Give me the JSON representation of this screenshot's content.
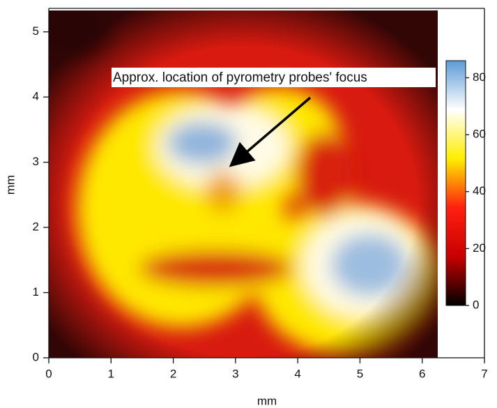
{
  "chart_data": {
    "type": "heatmap",
    "xlabel": "mm",
    "ylabel": "mm",
    "xlim": [
      0,
      7
    ],
    "xticks": [
      0,
      1,
      2,
      3,
      4,
      5,
      6,
      7
    ],
    "ylim": [
      0,
      5.36
    ],
    "yticks": [
      0,
      1,
      2,
      3,
      4,
      5
    ],
    "colormap": [
      "#000000",
      "#c80000",
      "#ff2010",
      "#ffee00",
      "#ffffff",
      "#5b9bd5"
    ],
    "colorbar": {
      "lim": [
        0,
        86
      ],
      "ticks": [
        0,
        20,
        40,
        60,
        80
      ]
    },
    "annotation": "Approx. location of pyrometry probes' focus"
  }
}
